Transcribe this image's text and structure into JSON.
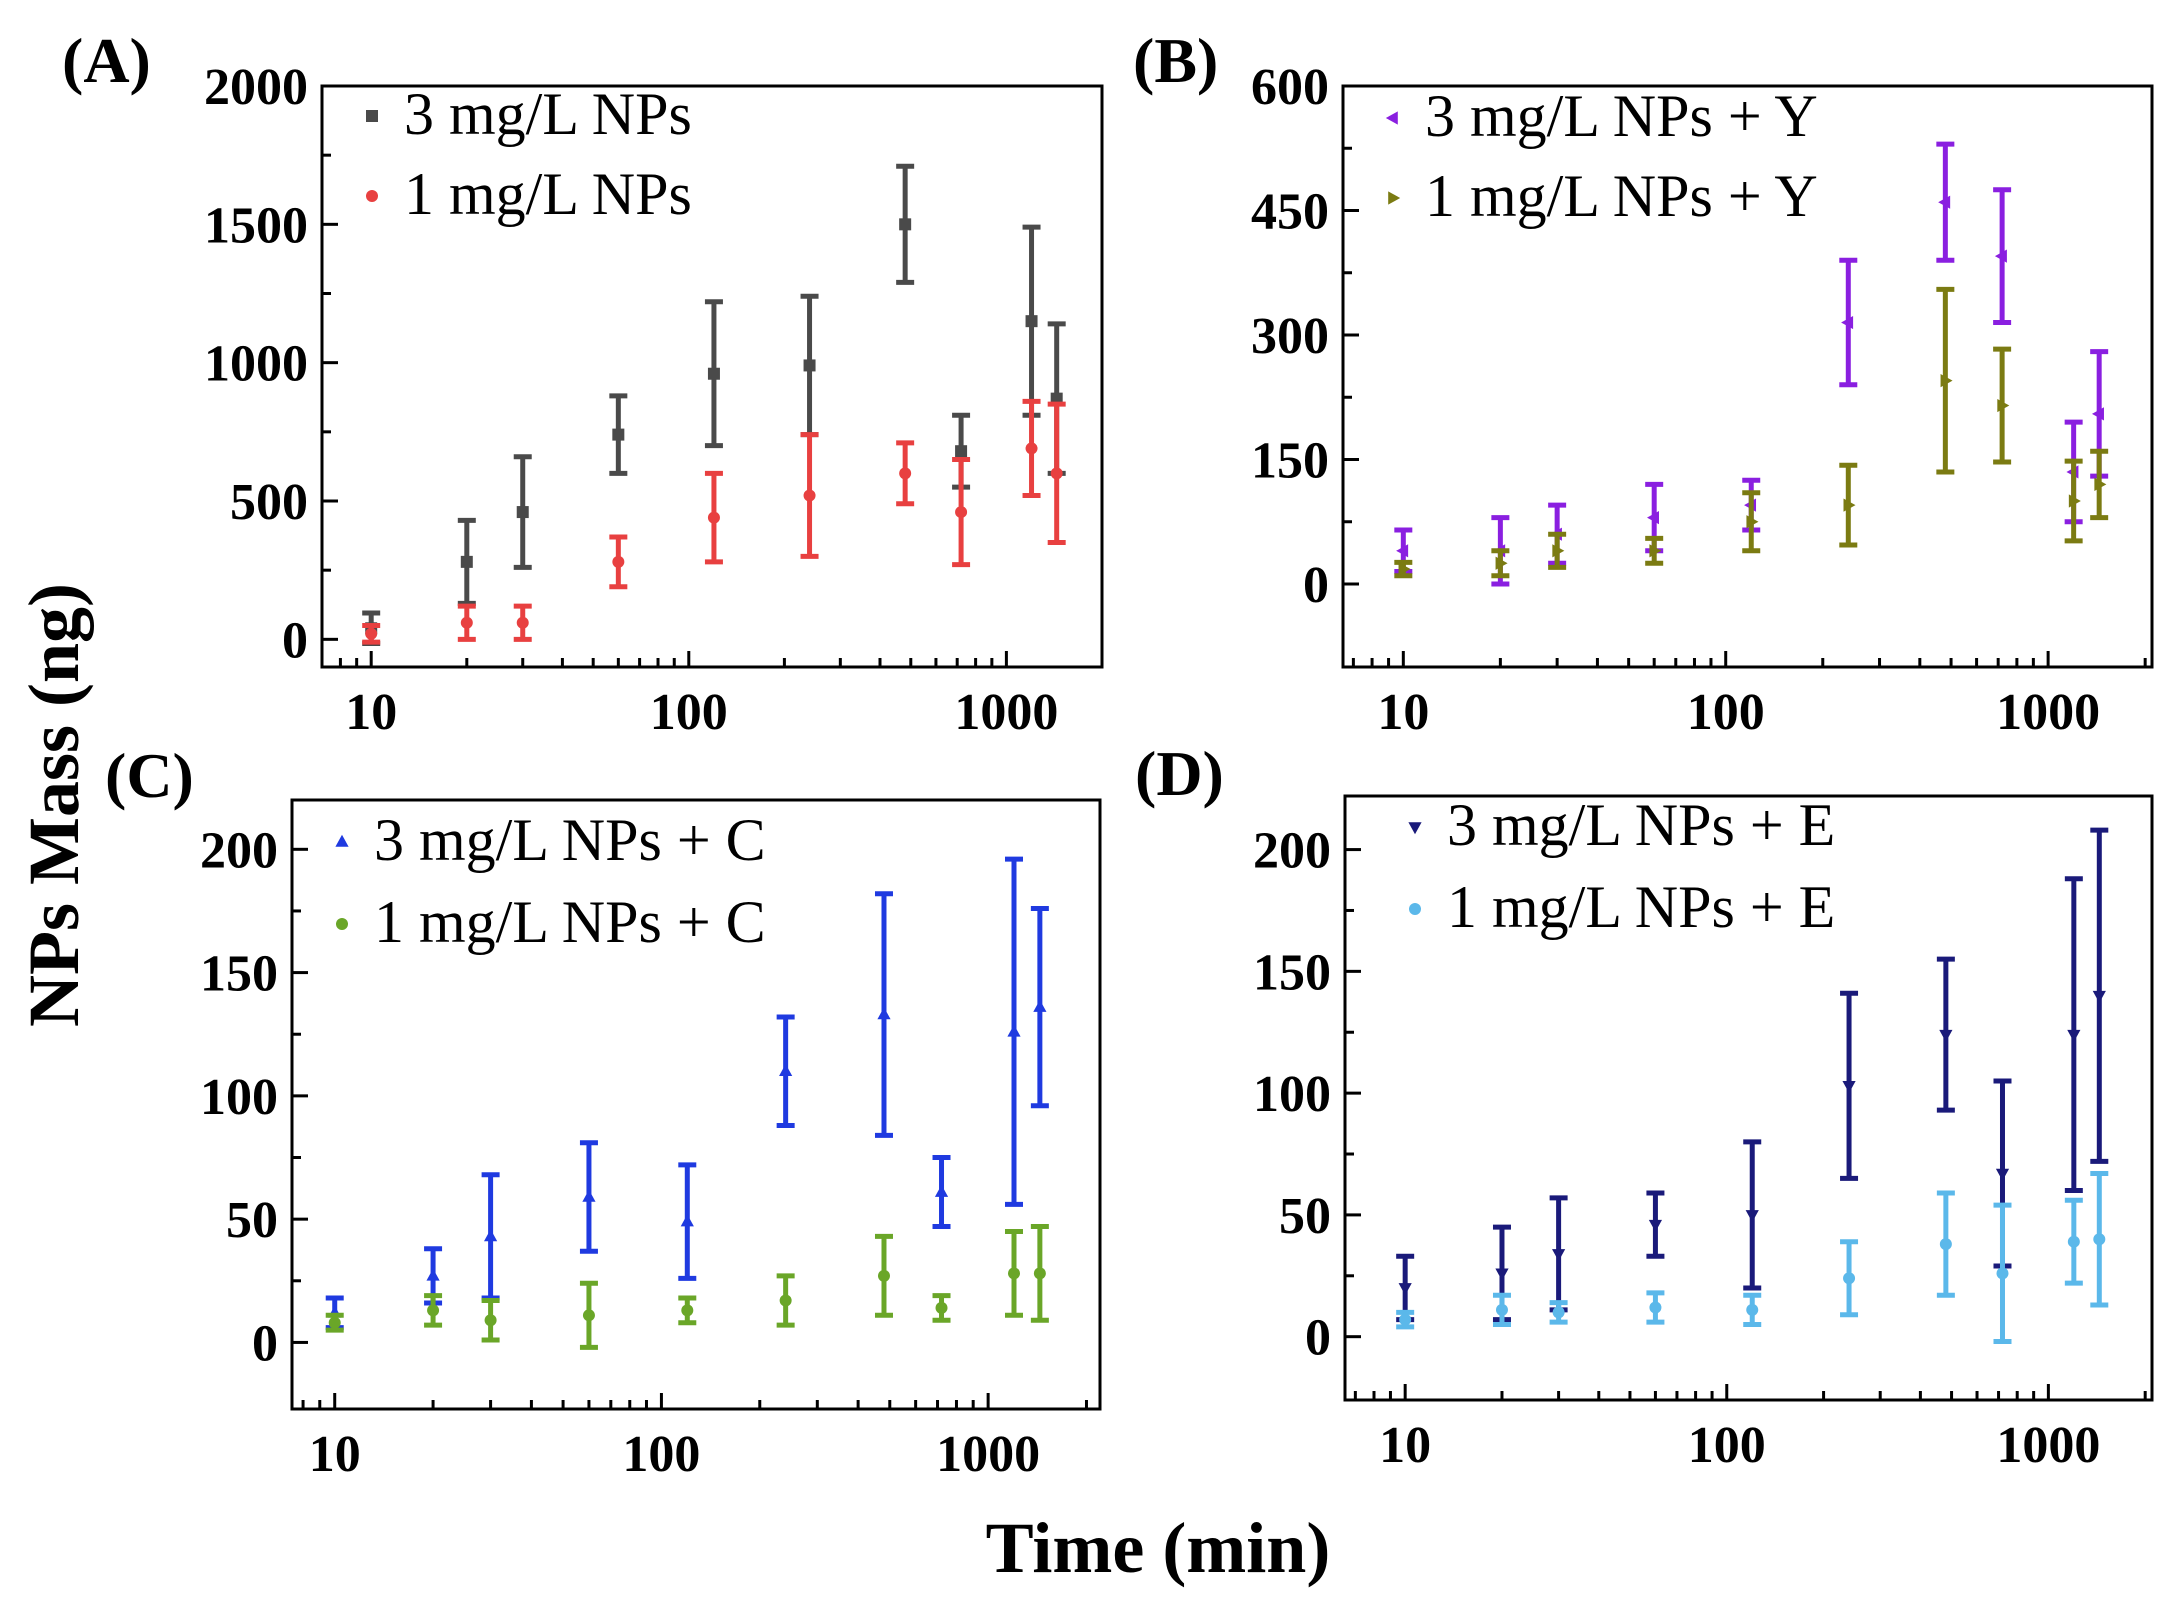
{
  "figure": {
    "xlabel": "Time (min)",
    "ylabel": "NPs Mass (ng)"
  },
  "chart_data": [
    {
      "panel": "(A)",
      "type": "scatter",
      "title": "",
      "xscale": "log",
      "xlim": [
        7,
        2000
      ],
      "xticks": [
        10,
        100,
        1000
      ],
      "xtick_labels": [
        "10",
        "100",
        "1000"
      ],
      "ylim": [
        -100,
        2000
      ],
      "yticks": [
        0,
        500,
        1000,
        1500,
        2000
      ],
      "ytick_labels": [
        "0",
        "500",
        "1000",
        "1500",
        "2000"
      ],
      "legend_position": "top-left",
      "series": [
        {
          "name": "3 mg/L NPs",
          "marker": "square",
          "color": "#4a4a4a",
          "x": [
            10,
            20,
            30,
            60,
            120,
            240,
            480,
            720,
            1200,
            1440
          ],
          "y": [
            40,
            280,
            460,
            740,
            960,
            990,
            1500,
            680,
            1150,
            870
          ],
          "err": [
            55,
            150,
            200,
            140,
            260,
            250,
            210,
            130,
            340,
            270
          ]
        },
        {
          "name": "1 mg/L NPs",
          "marker": "circle",
          "color": "#e84040",
          "x": [
            10,
            20,
            30,
            60,
            120,
            240,
            480,
            720,
            1200,
            1440
          ],
          "y": [
            20,
            60,
            60,
            280,
            440,
            520,
            600,
            460,
            690,
            600
          ],
          "err": [
            30,
            60,
            60,
            90,
            160,
            220,
            110,
            190,
            170,
            250
          ]
        }
      ]
    },
    {
      "panel": "(B)",
      "type": "scatter",
      "title": "",
      "xscale": "log",
      "xlim": [
        6.5,
        2100
      ],
      "xticks": [
        10,
        100,
        1000
      ],
      "xtick_labels": [
        "10",
        "100",
        "1000"
      ],
      "ylim": [
        -100,
        600
      ],
      "yticks": [
        0,
        150,
        300,
        450,
        600
      ],
      "ytick_labels": [
        "0",
        "150",
        "300",
        "450",
        "600"
      ],
      "legend_position": "top-left",
      "series": [
        {
          "name": "3 mg/L NPs + Y",
          "marker": "triangle-left",
          "color": "#8a1fe0",
          "x": [
            10,
            20,
            30,
            60,
            120,
            240,
            480,
            720,
            1200,
            1440
          ],
          "y": [
            40,
            40,
            60,
            80,
            95,
            315,
            460,
            395,
            135,
            205
          ],
          "err": [
            25,
            40,
            35,
            40,
            30,
            75,
            70,
            80,
            60,
            75
          ]
        },
        {
          "name": "1 mg/L NPs + Y",
          "marker": "triangle-right",
          "color": "#7b7b12",
          "x": [
            10,
            20,
            30,
            60,
            120,
            240,
            480,
            720,
            1200,
            1440
          ],
          "y": [
            18,
            25,
            40,
            40,
            75,
            95,
            245,
            215,
            100,
            120
          ],
          "err": [
            8,
            15,
            20,
            15,
            35,
            48,
            110,
            68,
            48,
            40
          ]
        }
      ]
    },
    {
      "panel": "(C)",
      "type": "scatter",
      "title": "",
      "xscale": "log",
      "xlim": [
        7.4,
        2200
      ],
      "xticks": [
        10,
        100,
        1000
      ],
      "xtick_labels": [
        "10",
        "100",
        "1000"
      ],
      "ylim": [
        -27,
        220
      ],
      "yticks": [
        0,
        50,
        100,
        150,
        200
      ],
      "ytick_labels": [
        "0",
        "50",
        "100",
        "150",
        "200"
      ],
      "legend_position": "top-left",
      "series": [
        {
          "name": "3 mg/L NPs + C",
          "marker": "triangle-up",
          "color": "#1f3ae0",
          "x": [
            10,
            20,
            30,
            60,
            120,
            240,
            480,
            720,
            1200,
            1440
          ],
          "y": [
            12,
            27,
            43,
            59,
            49,
            110,
            133,
            61,
            126,
            136
          ],
          "err": [
            6,
            11,
            25,
            22,
            23,
            22,
            49,
            14,
            70,
            40
          ]
        },
        {
          "name": "1 mg/L NPs + C",
          "marker": "circle",
          "color": "#6aa628",
          "x": [
            10,
            20,
            30,
            60,
            120,
            240,
            480,
            720,
            1200,
            1440
          ],
          "y": [
            8,
            13,
            9,
            11,
            13,
            17,
            27,
            14,
            28,
            28
          ],
          "err": [
            3,
            6,
            8,
            13,
            5,
            10,
            16,
            5,
            17,
            19
          ]
        }
      ]
    },
    {
      "panel": "(D)",
      "type": "scatter",
      "title": "",
      "xscale": "log",
      "xlim": [
        6.5,
        2100
      ],
      "xticks": [
        10,
        100,
        1000
      ],
      "xtick_labels": [
        "10",
        "100",
        "1000"
      ],
      "ylim": [
        -26,
        222
      ],
      "yticks": [
        0,
        50,
        100,
        150,
        200
      ],
      "ytick_labels": [
        "0",
        "50",
        "100",
        "150",
        "200"
      ],
      "legend_position": "top-left",
      "series": [
        {
          "name": "3 mg/L NPs + E",
          "marker": "triangle-down",
          "color": "#1a1a7a",
          "x": [
            10,
            20,
            30,
            60,
            120,
            240,
            480,
            720,
            1200,
            1440
          ],
          "y": [
            20,
            26,
            34,
            46,
            50,
            103,
            124,
            67,
            124,
            140
          ],
          "err": [
            13,
            19,
            23,
            13,
            30,
            38,
            31,
            38,
            64,
            68
          ]
        },
        {
          "name": "1 mg/L NPs + E",
          "marker": "circle",
          "color": "#5bb8ea",
          "x": [
            10,
            20,
            30,
            60,
            120,
            240,
            480,
            720,
            1200,
            1440
          ],
          "y": [
            7,
            11,
            10,
            12,
            11,
            24,
            38,
            26,
            39,
            40
          ],
          "err": [
            3,
            6,
            4,
            6,
            6,
            15,
            21,
            28,
            17,
            27
          ]
        }
      ]
    }
  ]
}
